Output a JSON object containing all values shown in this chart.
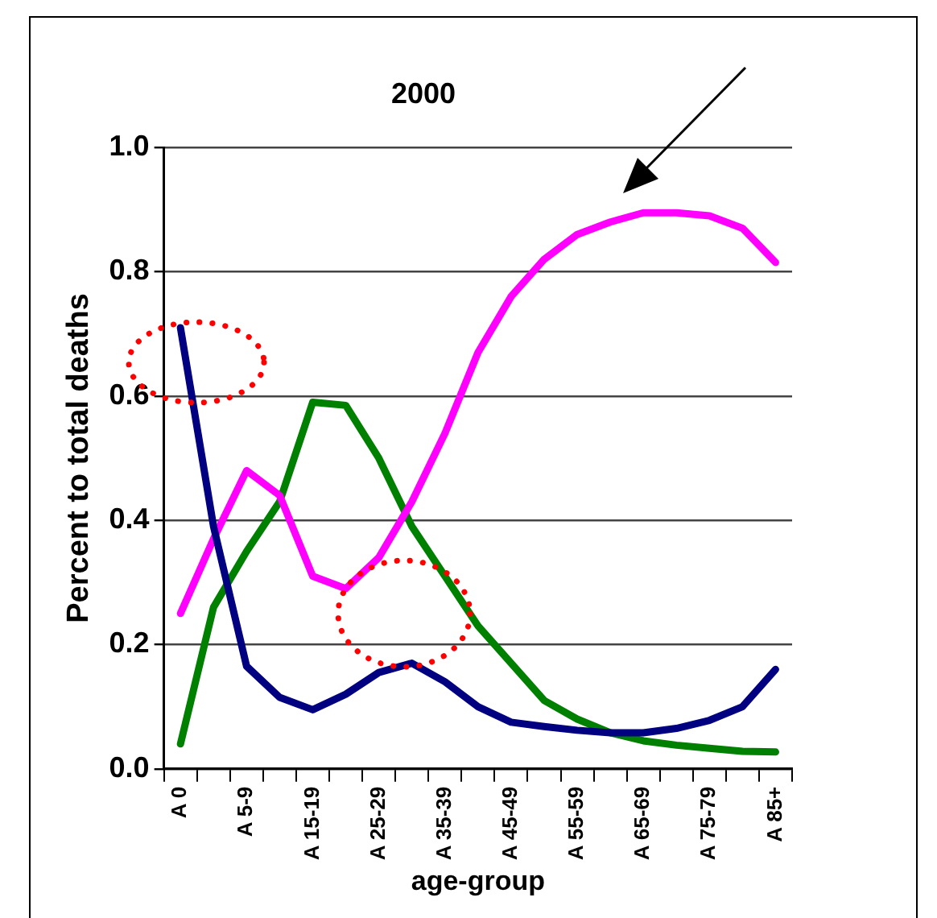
{
  "chart_data": {
    "type": "line",
    "title": "2000",
    "xlabel": "age-group",
    "ylabel": "Percent to total deaths",
    "categories": [
      "A 0",
      null,
      "A 5-9",
      null,
      "A 15-19",
      null,
      "A 25-29",
      null,
      "A 35-39",
      null,
      "A 45-49",
      null,
      "A 55-59",
      null,
      "A 65-69",
      null,
      "A 75-79",
      null,
      "A 85+"
    ],
    "series": [
      {
        "color": "#000080",
        "values": [
          0.71,
          0.39,
          0.165,
          0.115,
          0.095,
          0.12,
          0.155,
          0.17,
          0.14,
          0.1,
          0.075,
          0.068,
          0.062,
          0.058,
          0.058,
          0.065,
          0.078,
          0.1,
          0.16
        ]
      },
      {
        "color": "#ff00ff",
        "values": [
          0.25,
          0.37,
          0.48,
          0.44,
          0.31,
          0.29,
          0.34,
          0.43,
          0.54,
          0.67,
          0.76,
          0.82,
          0.86,
          0.88,
          0.895,
          0.895,
          0.89,
          0.87,
          0.815
        ]
      },
      {
        "color": "#008000",
        "values": [
          0.04,
          0.26,
          0.35,
          0.43,
          0.59,
          0.585,
          0.5,
          0.39,
          0.31,
          0.23,
          0.17,
          0.11,
          0.08,
          0.058,
          0.045,
          0.038,
          0.033,
          0.028,
          0.027
        ]
      }
    ],
    "ylim": [
      0,
      1
    ],
    "yticks": [
      {
        "value": 0,
        "label": "0.0"
      },
      {
        "value": 0.2,
        "label": "0.2"
      },
      {
        "value": 0.4,
        "label": "0.4"
      },
      {
        "value": 0.6,
        "label": "0.6"
      },
      {
        "value": 0.8,
        "label": "0.8"
      },
      {
        "value": 1,
        "label": "1.0"
      }
    ],
    "grid": "y",
    "marker": "none",
    "line_style": "solid",
    "legend": false
  }
}
